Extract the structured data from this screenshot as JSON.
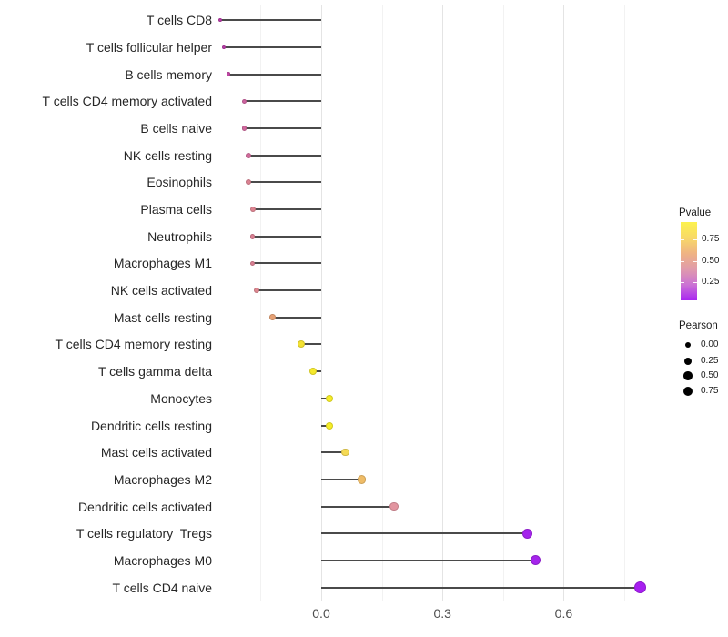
{
  "chart_data": {
    "type": "lollipop",
    "title": "",
    "xlabel": "",
    "ylabel": "",
    "grid": true,
    "legend_position": "right",
    "xlim": [
      -0.26,
      0.83
    ],
    "x_ticks": [
      {
        "label": "0.0",
        "value": 0.0
      },
      {
        "label": "0.3",
        "value": 0.3
      },
      {
        "label": "0.6",
        "value": 0.6
      }
    ],
    "x_minor_gridlines": [
      -0.15,
      0.15,
      0.45,
      0.75
    ],
    "points": [
      {
        "label": "T cells CD8",
        "pearson": -0.25,
        "pvalue": 0.2,
        "color": "#B93DA9",
        "r": 2.0
      },
      {
        "label": "T cells follicular helper",
        "pearson": -0.24,
        "pvalue": 0.2,
        "color": "#BA3EA9",
        "r": 2.0
      },
      {
        "label": "B cells memory",
        "pearson": -0.23,
        "pvalue": 0.24,
        "color": "#C247A6",
        "r": 2.3
      },
      {
        "label": "T cells CD4 memory activated",
        "pearson": -0.19,
        "pvalue": 0.33,
        "color": "#CE63A0",
        "r": 2.8
      },
      {
        "label": "B cells naive",
        "pearson": -0.19,
        "pvalue": 0.34,
        "color": "#D0689D",
        "r": 2.8
      },
      {
        "label": "NK cells resting",
        "pearson": -0.18,
        "pvalue": 0.35,
        "color": "#D16B9B",
        "r": 3.0
      },
      {
        "label": "Eosinophils",
        "pearson": -0.18,
        "pvalue": 0.44,
        "color": "#DB8292",
        "r": 3.0
      },
      {
        "label": "Plasma cells",
        "pearson": -0.17,
        "pvalue": 0.45,
        "color": "#DC8491",
        "r": 3.0
      },
      {
        "label": "Neutrophils",
        "pearson": -0.17,
        "pvalue": 0.44,
        "color": "#DA8093",
        "r": 2.8
      },
      {
        "label": "Macrophages M1",
        "pearson": -0.17,
        "pvalue": 0.44,
        "color": "#DA8093",
        "r": 2.8
      },
      {
        "label": "NK cells activated",
        "pearson": -0.16,
        "pvalue": 0.46,
        "color": "#DD8790",
        "r": 3.0
      },
      {
        "label": "Mast cells resting",
        "pearson": -0.12,
        "pvalue": 0.58,
        "color": "#E6A175",
        "r": 3.3
      },
      {
        "label": "T cells CD4 memory resting",
        "pearson": -0.05,
        "pvalue": 0.9,
        "color": "#F4E233",
        "r": 4.0
      },
      {
        "label": "T cells gamma delta",
        "pearson": -0.02,
        "pvalue": 0.93,
        "color": "#F5E92C",
        "r": 4.0
      },
      {
        "label": "Monocytes",
        "pearson": 0.02,
        "pvalue": 0.95,
        "color": "#F6ED27",
        "r": 4.0
      },
      {
        "label": "Dendritic cells resting",
        "pearson": 0.02,
        "pvalue": 0.95,
        "color": "#F6ED27",
        "r": 4.0
      },
      {
        "label": "Mast cells activated",
        "pearson": 0.06,
        "pvalue": 0.8,
        "color": "#F5DA55",
        "r": 4.3
      },
      {
        "label": "Macrophages M2",
        "pearson": 0.1,
        "pvalue": 0.65,
        "color": "#EFBC67",
        "r": 4.7
      },
      {
        "label": "Dendritic cells activated",
        "pearson": 0.18,
        "pvalue": 0.46,
        "color": "#E295A0",
        "r": 4.8
      },
      {
        "label": "T cells regulatory  Tregs",
        "pearson": 0.51,
        "pvalue": 0.02,
        "color": "#A524EC",
        "r": 5.6
      },
      {
        "label": "Macrophages M0",
        "pearson": 0.53,
        "pvalue": 0.02,
        "color": "#A524EC",
        "r": 5.6
      },
      {
        "label": "T cells CD4 naive",
        "pearson": 0.79,
        "pvalue": 0.01,
        "color": "#A71FF0",
        "r": 6.6
      }
    ],
    "legend_pvalue": {
      "title": "Pvalue",
      "ticks": [
        "0.75",
        "0.50",
        "0.25"
      ],
      "gradient": [
        "#FCF24D",
        "#F8D968",
        "#EFB383",
        "#E09BAB",
        "#CB73D4",
        "#A928F0"
      ]
    },
    "legend_pearson": {
      "title": "Pearson",
      "items": [
        {
          "label": "0.00",
          "r": 3.3
        },
        {
          "label": "0.25",
          "r": 4.0
        },
        {
          "label": "0.50",
          "r": 4.7
        },
        {
          "label": "0.75",
          "r": 5.3
        }
      ]
    }
  }
}
